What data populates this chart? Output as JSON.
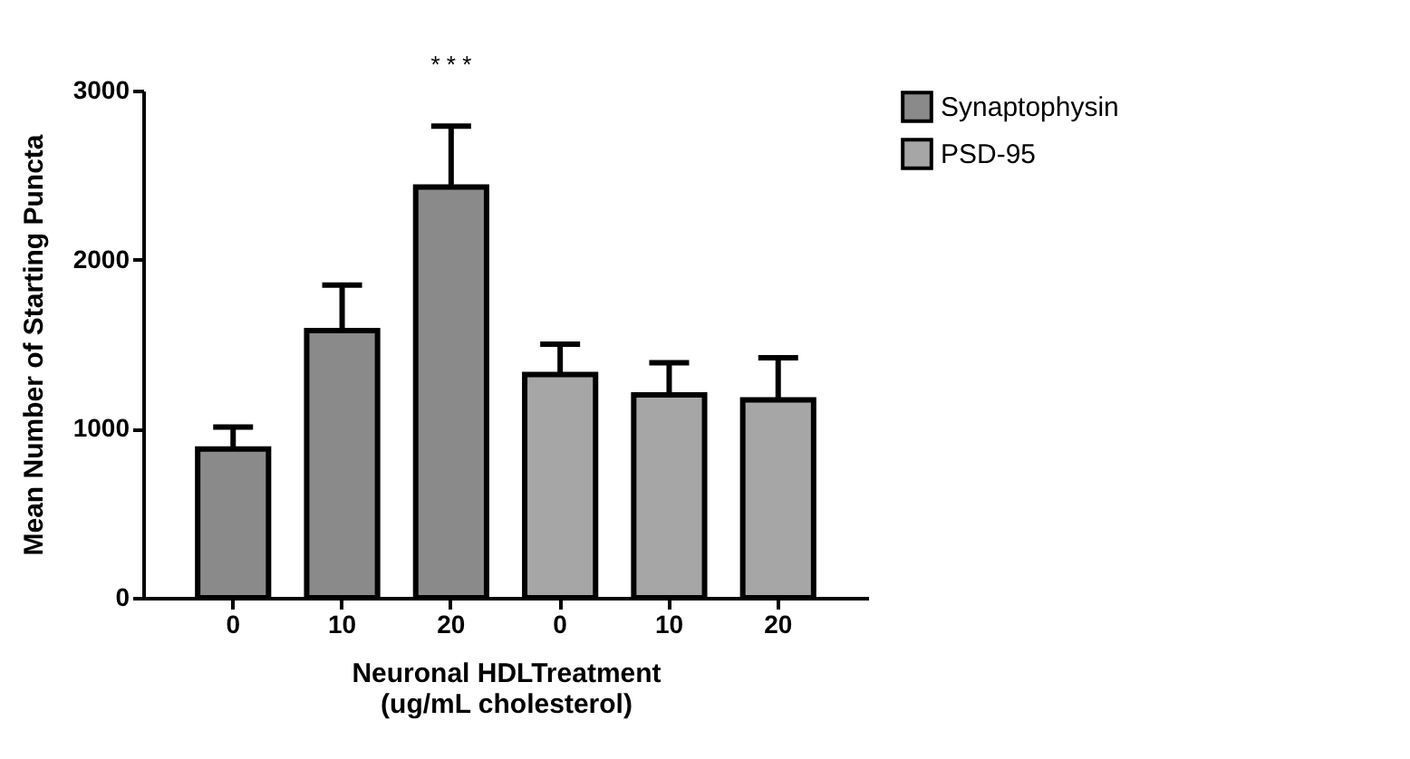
{
  "chart_data": {
    "type": "bar",
    "xlabel": "Neuronal HDLTreatment\n(ug/mL cholesterol)",
    "ylabel": "Mean Number of Starting Puncta",
    "categories": [
      "0",
      "10",
      "20",
      "0",
      "10",
      "20"
    ],
    "series": [
      {
        "name": "Synaptophysin",
        "color": "#8a8a8a",
        "values": [
          880,
          1580,
          2430,
          null,
          null,
          null
        ],
        "errors": [
          130,
          270,
          360,
          null,
          null,
          null
        ]
      },
      {
        "name": "PSD-95",
        "color": "#a6a6a6",
        "values": [
          null,
          null,
          null,
          1320,
          1200,
          1170
        ],
        "errors": [
          null,
          null,
          null,
          180,
          190,
          250
        ]
      }
    ],
    "ylim": [
      0,
      3000
    ],
    "yticks": [
      0,
      1000,
      2000,
      3000
    ],
    "grid": false,
    "legend": "top right",
    "annotations": [
      "* * *"
    ]
  }
}
